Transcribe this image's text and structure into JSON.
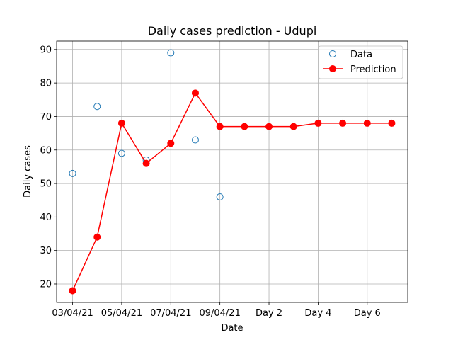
{
  "chart_data": {
    "type": "line",
    "title": "Daily cases prediction - Udupi",
    "xlabel": "Date",
    "ylabel": "Daily cases",
    "x_ticks": [
      {
        "pos": 0,
        "label": "03/04/21"
      },
      {
        "pos": 2,
        "label": "05/04/21"
      },
      {
        "pos": 4,
        "label": "07/04/21"
      },
      {
        "pos": 6,
        "label": "09/04/21"
      },
      {
        "pos": 8,
        "label": "Day 2"
      },
      {
        "pos": 10,
        "label": "Day 4"
      },
      {
        "pos": 12,
        "label": "Day 6"
      }
    ],
    "xlim": [
      -0.65,
      13.65
    ],
    "ylim": [
      14.5,
      92.5
    ],
    "y_ticks": [
      20,
      30,
      40,
      50,
      60,
      70,
      80,
      90
    ],
    "grid": true,
    "legend_position": "top-right",
    "series": [
      {
        "name": "Data",
        "style": "hollow-markers",
        "color": "#1f77b4",
        "x": [
          0,
          1,
          2,
          3,
          4,
          5,
          6
        ],
        "values": [
          53,
          73,
          59,
          57,
          89,
          63,
          46
        ]
      },
      {
        "name": "Prediction",
        "style": "line-markers",
        "color": "#ff0000",
        "x": [
          0,
          1,
          2,
          3,
          4,
          5,
          6,
          7,
          8,
          9,
          10,
          11,
          12,
          13
        ],
        "values": [
          18,
          34,
          68,
          56,
          62,
          77,
          67,
          67,
          67,
          67,
          68,
          68,
          68,
          68
        ]
      }
    ]
  }
}
